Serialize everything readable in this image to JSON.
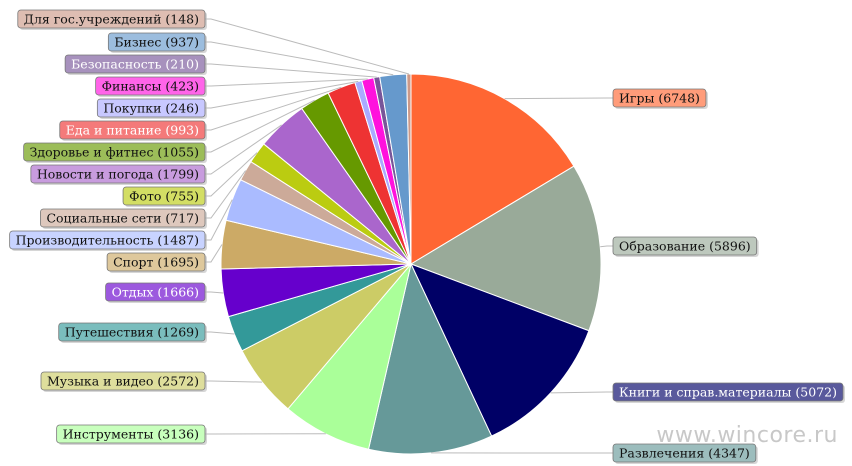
{
  "chart_data": {
    "type": "pie",
    "slices": [
      {
        "label": "Игры (6748)",
        "value": 6748,
        "color": "#ff6633"
      },
      {
        "label": "Образование (5896)",
        "value": 5896,
        "color": "#99aa99"
      },
      {
        "label": "Книги и справ.материалы (5072)",
        "value": 5072,
        "color": "#000066"
      },
      {
        "label": "Развлечения (4347)",
        "value": 4347,
        "color": "#669999"
      },
      {
        "label": "Инструменты (3136)",
        "value": 3136,
        "color": "#aaff99"
      },
      {
        "label": "Музыка и видео (2572)",
        "value": 2572,
        "color": "#cccc66"
      },
      {
        "label": "Путешествия (1269)",
        "value": 1269,
        "color": "#339999"
      },
      {
        "label": "Отдых (1666)",
        "value": 1666,
        "color": "#6600cc"
      },
      {
        "label": "Спорт (1695)",
        "value": 1695,
        "color": "#ccaa66"
      },
      {
        "label": "Производительность (1487)",
        "value": 1487,
        "color": "#aabbff"
      },
      {
        "label": "Социальные сети (717)",
        "value": 717,
        "color": "#ccaa99"
      },
      {
        "label": "Фото (755)",
        "value": 755,
        "color": "#bbcc11"
      },
      {
        "label": "Новости и погода (1799)",
        "value": 1799,
        "color": "#aa66cc"
      },
      {
        "label": "Здоровье и фитнес (1055)",
        "value": 1055,
        "color": "#669900"
      },
      {
        "label": "Еда и питание (993)",
        "value": 993,
        "color": "#ee3333"
      },
      {
        "label": "Покупки (246)",
        "value": 246,
        "color": "#aaaaff"
      },
      {
        "label": "Финансы (423)",
        "value": 423,
        "color": "#ff11dd"
      },
      {
        "label": "Безопасность (210)",
        "value": 210,
        "color": "#775599"
      },
      {
        "label": "Бизнес (937)",
        "value": 937,
        "color": "#6699cc"
      },
      {
        "label": "Для гос.учреждений (148)",
        "value": 148,
        "color": "#cc9988"
      }
    ]
  },
  "watermark": "www.wincore.ru"
}
